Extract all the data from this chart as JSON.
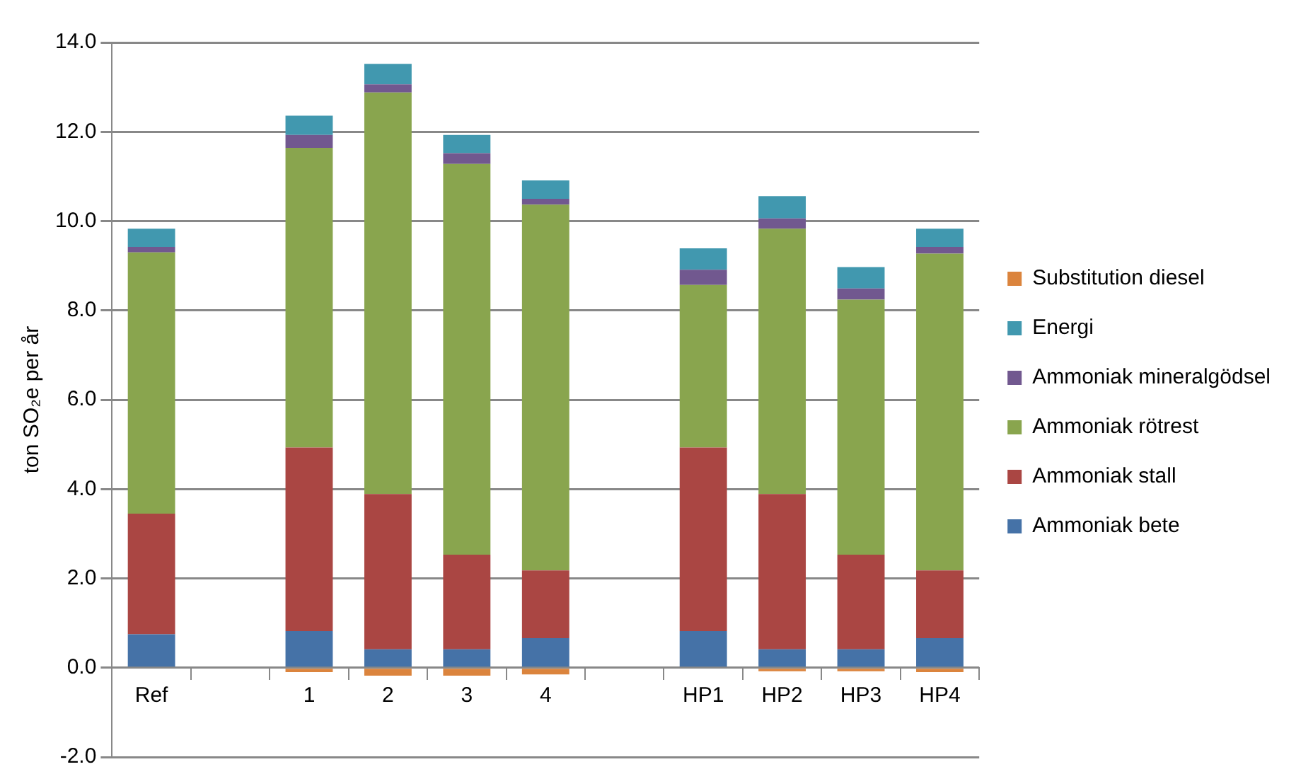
{
  "chart_data": {
    "type": "bar",
    "stacked": true,
    "ylabel": "ton SO₂e per år",
    "categories": [
      "Ref",
      null,
      "1",
      "2",
      "3",
      "4",
      null,
      "HP1",
      "HP2",
      "HP3",
      "HP4"
    ],
    "series": [
      {
        "name": "Ammoniak bete",
        "color": "#4572a7",
        "values": [
          0.75,
          null,
          0.82,
          0.41,
          0.41,
          0.66,
          null,
          0.82,
          0.41,
          0.41,
          0.66
        ]
      },
      {
        "name": "Ammoniak stall",
        "color": "#aa4643",
        "values": [
          2.7,
          null,
          4.11,
          3.48,
          2.12,
          1.52,
          null,
          4.11,
          3.48,
          2.12,
          1.52
        ]
      },
      {
        "name": "Ammoniak rötrest",
        "color": "#89a54e",
        "values": [
          5.85,
          null,
          6.71,
          8.99,
          8.75,
          8.19,
          null,
          3.64,
          5.94,
          5.71,
          7.09
        ]
      },
      {
        "name": "Ammoniak mineralgödsel",
        "color": "#71588f",
        "values": [
          0.12,
          null,
          0.29,
          0.18,
          0.24,
          0.13,
          null,
          0.34,
          0.23,
          0.25,
          0.15
        ]
      },
      {
        "name": "Energi",
        "color": "#4198af",
        "values": [
          0.41,
          null,
          0.43,
          0.46,
          0.41,
          0.41,
          null,
          0.48,
          0.5,
          0.48,
          0.41
        ]
      },
      {
        "name": "Substitution diesel",
        "color": "#db843d",
        "values": [
          0,
          null,
          -0.1,
          -0.18,
          -0.18,
          -0.15,
          null,
          0,
          -0.08,
          -0.08,
          -0.1
        ]
      }
    ],
    "ylim": [
      -2,
      14
    ],
    "yticks": [
      {
        "value": -2,
        "label": "-2.0"
      },
      {
        "value": 0,
        "label": "0.0"
      },
      {
        "value": 2,
        "label": "2.0"
      },
      {
        "value": 4,
        "label": "4.0"
      },
      {
        "value": 6,
        "label": "6.0"
      },
      {
        "value": 8,
        "label": "8.0"
      },
      {
        "value": 10,
        "label": "10.0"
      },
      {
        "value": 12,
        "label": "12.0"
      },
      {
        "value": 14,
        "label": "14.0"
      }
    ],
    "grid": "y",
    "legend": "right"
  }
}
